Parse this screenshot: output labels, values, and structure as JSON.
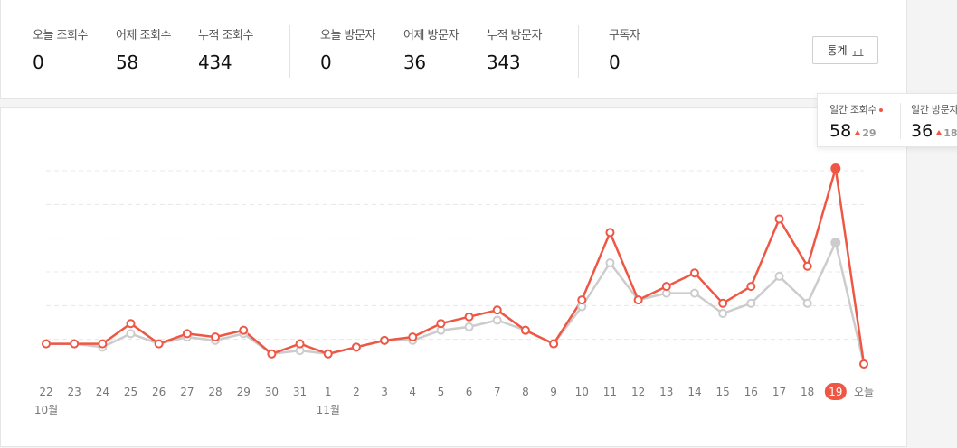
{
  "stats": {
    "items": [
      {
        "label": "오늘 조회수",
        "value": "0"
      },
      {
        "label": "어제 조회수",
        "value": "58"
      },
      {
        "label": "누적 조회수",
        "value": "434"
      },
      {
        "label": "오늘 방문자",
        "value": "0"
      },
      {
        "label": "어제 방문자",
        "value": "36"
      },
      {
        "label": "누적 방문자",
        "value": "343"
      },
      {
        "label": "구독자",
        "value": "0"
      }
    ],
    "button_label": "통계"
  },
  "tooltip": {
    "views_label": "일간 조회수",
    "views_value": "58",
    "views_delta": "29",
    "visitors_label": "일간 방문자",
    "visitors_value": "36",
    "visitors_delta": "18"
  },
  "colors": {
    "views": "#ef5745",
    "visitors": "#cccccc",
    "grid": "#e8e8e8"
  },
  "chart_data": {
    "type": "line",
    "x": [
      "22",
      "23",
      "24",
      "25",
      "26",
      "27",
      "28",
      "29",
      "30",
      "31",
      "1",
      "2",
      "3",
      "4",
      "5",
      "6",
      "7",
      "8",
      "9",
      "10",
      "11",
      "12",
      "13",
      "14",
      "15",
      "16",
      "17",
      "18",
      "19",
      "오늘"
    ],
    "month_labels": [
      {
        "at": "22",
        "label": "10월"
      },
      {
        "at": "1",
        "label": "11월"
      }
    ],
    "highlight": "19",
    "series": [
      {
        "name": "일간 방문자",
        "values": [
          6,
          6,
          5,
          9,
          6,
          8,
          7,
          9,
          3,
          4,
          3,
          5,
          7,
          7,
          10,
          11,
          13,
          10,
          6,
          17,
          30,
          19,
          21,
          21,
          15,
          18,
          26,
          18,
          36,
          0
        ]
      },
      {
        "name": "일간 조회수",
        "values": [
          6,
          6,
          6,
          12,
          6,
          9,
          8,
          10,
          3,
          6,
          3,
          5,
          7,
          8,
          12,
          14,
          16,
          10,
          6,
          19,
          39,
          19,
          23,
          27,
          18,
          23,
          43,
          29,
          58,
          0
        ]
      }
    ],
    "ylim": [
      0,
      60
    ],
    "grid": true
  }
}
